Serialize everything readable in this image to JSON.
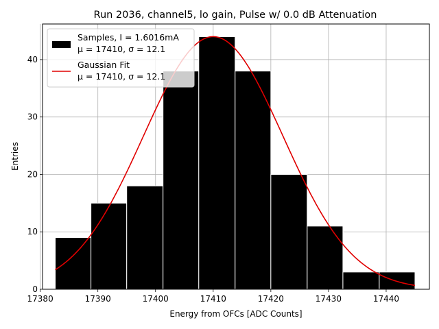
{
  "chart_data": {
    "type": "bar",
    "title": "Run 2036, channel5, lo gain, Pulse w/ 0.0 dB Attenuation",
    "xlabel": "Energy from OFCs [ADC Counts]",
    "ylabel": "Entries",
    "xlim": [
      17380.4,
      17447.5
    ],
    "ylim": [
      0,
      46.2
    ],
    "xticks": [
      17380,
      17390,
      17400,
      17410,
      17420,
      17430,
      17440
    ],
    "yticks": [
      0,
      10,
      20,
      30,
      40
    ],
    "grid": true,
    "legend_position": "top-left",
    "histogram": {
      "name": "Samples, I = 1.6016mA",
      "name_line2": "μ = 17410, σ = 12.1",
      "bin_edges": [
        17382.6,
        17388.8,
        17395.0,
        17401.3,
        17407.5,
        17413.8,
        17420.0,
        17426.3,
        17432.5,
        17438.8,
        17445.0
      ],
      "counts": [
        9,
        15,
        18,
        38,
        44,
        38,
        20,
        11,
        3,
        3
      ],
      "color": "#000000",
      "edgecolor": "#ffffff"
    },
    "fit": {
      "name": "Gaussian Fit",
      "name_line2": "μ = 17410, σ = 12.1",
      "mu": 17410,
      "sigma": 12.1,
      "amplitude": 44,
      "x_range": [
        17382.6,
        17445.0
      ],
      "color": "#e00000"
    }
  }
}
